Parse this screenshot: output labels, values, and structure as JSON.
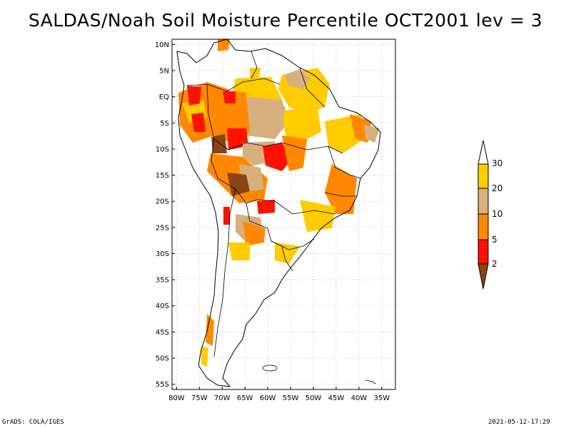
{
  "title": "SALDAS/Noah Soil Moisture Percentile OCT2001 lev = 3",
  "footer": {
    "left": "GrADS: COLA/IGES",
    "right": "2021-05-12-17:29"
  },
  "axes": {
    "lat_ticks": [
      "10N",
      "5N",
      "EQ",
      "5S",
      "10S",
      "15S",
      "20S",
      "25S",
      "30S",
      "35S",
      "40S",
      "45S",
      "50S",
      "55S"
    ],
    "lon_ticks": [
      "80W",
      "75W",
      "70W",
      "65W",
      "60W",
      "55W",
      "50W",
      "45W",
      "40W",
      "35W"
    ]
  },
  "colorbar": {
    "levels": [
      "30",
      "20",
      "10",
      "5",
      "2"
    ],
    "colors": {
      "above30": "#ffffff",
      "p20_30": "#ffcc00",
      "p10_20": "#d8b07e",
      "p5_10": "#ff8800",
      "p2_5": "#ff1100",
      "below2": "#8b4513"
    }
  },
  "map": {
    "lon_range": [
      -81,
      -32
    ],
    "lat_range": [
      -56,
      11
    ],
    "grid": true
  }
}
